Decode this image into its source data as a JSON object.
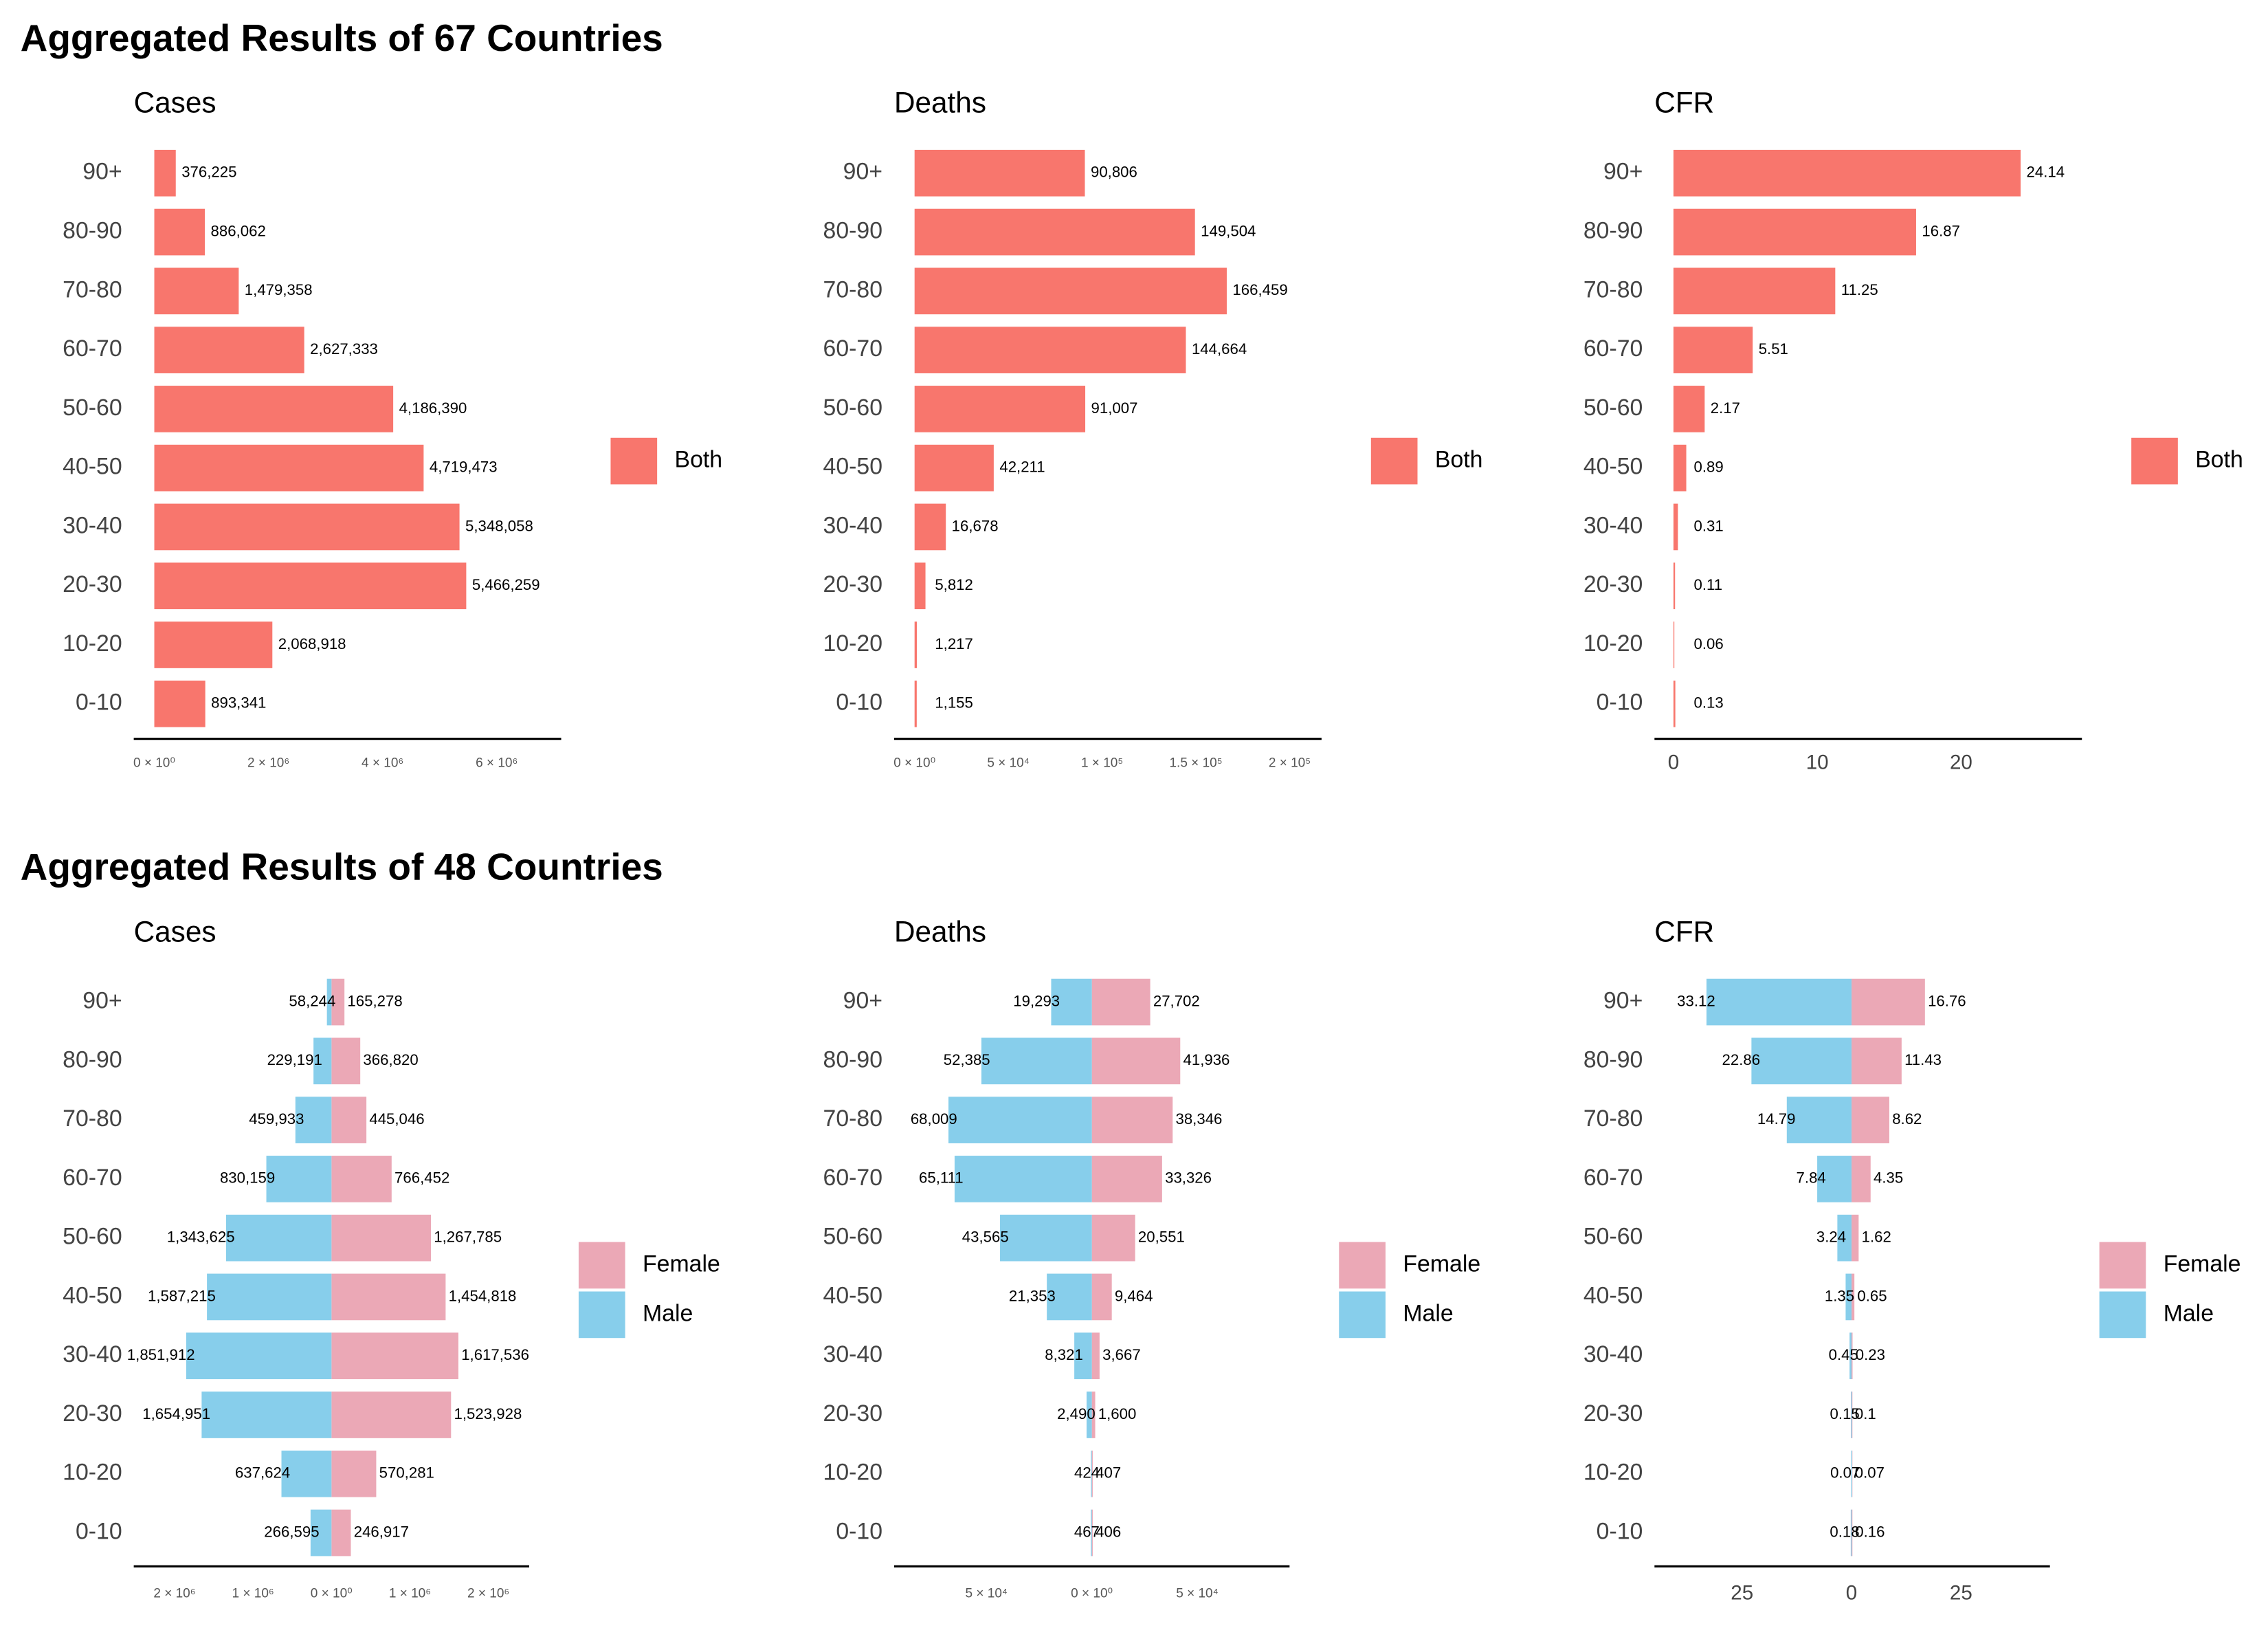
{
  "headings": [
    "Aggregated Results of 67 Countries",
    "Aggregated Results of 48 Countries"
  ],
  "chart_data": [
    {
      "type": "bar",
      "orientation": "horizontal",
      "title": "Cases",
      "categories": [
        "90+",
        "80-90",
        "70-80",
        "60-70",
        "50-60",
        "40-50",
        "30-40",
        "20-30",
        "10-20",
        "0-10"
      ],
      "series": [
        {
          "name": "Both",
          "color": "#F8766D",
          "values": [
            376225,
            886062,
            1479358,
            2627333,
            4186390,
            4719473,
            5348058,
            5466259,
            2068918,
            893341
          ],
          "value_labels": [
            "376,225",
            "886,062",
            "1,479,358",
            "2,627,333",
            "4,186,390",
            "4,719,473",
            "5,348,058",
            "5,466,259",
            "2,068,918",
            "893,341"
          ]
        }
      ],
      "xlim": [
        -360000,
        7130000
      ],
      "xticks": [
        {
          "value": 0,
          "label": "0 × 10⁰"
        },
        {
          "value": 2000000,
          "label": "2 × 10⁶"
        },
        {
          "value": 4000000,
          "label": "4 × 10⁶"
        },
        {
          "value": 6000000,
          "label": "6 × 10⁶"
        }
      ],
      "legend_position": "right"
    },
    {
      "type": "bar",
      "orientation": "horizontal",
      "title": "Deaths",
      "categories": [
        "90+",
        "80-90",
        "70-80",
        "60-70",
        "50-60",
        "40-50",
        "30-40",
        "20-30",
        "10-20",
        "0-10"
      ],
      "series": [
        {
          "name": "Both",
          "color": "#F8766D",
          "values": [
            90806,
            149504,
            166459,
            144664,
            91007,
            42211,
            16678,
            5812,
            1217,
            1155
          ],
          "value_labels": [
            "90,806",
            "149,504",
            "166,459",
            "144,664",
            "91,007",
            "42,211",
            "16,678",
            "5,812",
            "1,217",
            "1,155"
          ]
        }
      ],
      "xlim": [
        -10900,
        217000
      ],
      "xticks": [
        {
          "value": 0,
          "label": "0 × 10⁰"
        },
        {
          "value": 50000,
          "label": "5 × 10⁴"
        },
        {
          "value": 100000,
          "label": "1 × 10⁵"
        },
        {
          "value": 150000,
          "label": "1.5 × 10⁵"
        },
        {
          "value": 200000,
          "label": "2 × 10⁵"
        }
      ],
      "legend_position": "right"
    },
    {
      "type": "bar",
      "orientation": "horizontal",
      "title": "CFR",
      "categories": [
        "90+",
        "80-90",
        "70-80",
        "60-70",
        "50-60",
        "40-50",
        "30-40",
        "20-30",
        "10-20",
        "0-10"
      ],
      "series": [
        {
          "name": "Both",
          "color": "#F8766D",
          "values": [
            24.14,
            16.87,
            11.25,
            5.51,
            2.17,
            0.89,
            0.31,
            0.11,
            0.06,
            0.13
          ]
        }
      ],
      "xlim": [
        -1.32,
        28.4
      ],
      "xticks": [
        0,
        10,
        20
      ],
      "legend_position": "right"
    },
    {
      "type": "diverging-bar",
      "orientation": "horizontal",
      "title": "Cases",
      "categories": [
        "90+",
        "80-90",
        "70-80",
        "60-70",
        "50-60",
        "40-50",
        "30-40",
        "20-30",
        "10-20",
        "0-10"
      ],
      "series": [
        {
          "name": "Female",
          "color": "#EBA8B6",
          "values": [
            165278,
            366820,
            445046,
            766452,
            1267785,
            1454818,
            1617536,
            1523928,
            570281,
            246917
          ],
          "value_labels": [
            "165,278",
            "366,820",
            "445,046",
            "766,452",
            "1,267,785",
            "1,454,818",
            "1,617,536",
            "1,523,928",
            "570,281",
            "246,917"
          ]
        },
        {
          "name": "Male",
          "color": "#87CEEB",
          "values": [
            -58244,
            -229191,
            -459933,
            -830159,
            -1343625,
            -1587215,
            -1851912,
            -1654951,
            -637624,
            -266595
          ],
          "value_labels": [
            "58,244",
            "229,191",
            "459,933",
            "830,159",
            "1,343,625",
            "1,587,215",
            "1,851,912",
            "1,654,951",
            "637,624",
            "266,595"
          ]
        }
      ],
      "xlim": [
        -2520000,
        2520000
      ],
      "xticks": [
        {
          "value": -2000000,
          "label": "2 × 10⁶"
        },
        {
          "value": -1000000,
          "label": "1 × 10⁶"
        },
        {
          "value": 0,
          "label": "0 × 10⁰"
        },
        {
          "value": 1000000,
          "label": "1 × 10⁶"
        },
        {
          "value": 2000000,
          "label": "2 × 10⁶"
        }
      ],
      "legend_position": "right"
    },
    {
      "type": "diverging-bar",
      "orientation": "horizontal",
      "title": "Deaths",
      "categories": [
        "90+",
        "80-90",
        "70-80",
        "60-70",
        "50-60",
        "40-50",
        "30-40",
        "20-30",
        "10-20",
        "0-10"
      ],
      "series": [
        {
          "name": "Female",
          "color": "#EBA8B6",
          "values": [
            27702,
            41936,
            38346,
            33326,
            20551,
            9464,
            3667,
            1600,
            407,
            406
          ],
          "value_labels": [
            "27,702",
            "41,936",
            "38,346",
            "33,326",
            "20,551",
            "9,464",
            "3,667",
            "1,600",
            "407",
            "406"
          ]
        },
        {
          "name": "Male",
          "color": "#87CEEB",
          "values": [
            -19293,
            -52385,
            -68009,
            -65111,
            -43565,
            -21353,
            -8321,
            -2490,
            -424,
            -467
          ],
          "value_labels": [
            "19,293",
            "52,385",
            "68,009",
            "65,111",
            "43,565",
            "21,353",
            "8,321",
            "2,490",
            "424",
            "467"
          ]
        }
      ],
      "xlim": [
        -93800,
        93800
      ],
      "xticks": [
        {
          "value": -50000,
          "label": "5 × 10⁴"
        },
        {
          "value": 0,
          "label": "0 × 10⁰"
        },
        {
          "value": 50000,
          "label": "5 × 10⁴"
        }
      ],
      "legend_position": "right"
    },
    {
      "type": "diverging-bar",
      "orientation": "horizontal",
      "title": "CFR",
      "categories": [
        "90+",
        "80-90",
        "70-80",
        "60-70",
        "50-60",
        "40-50",
        "30-40",
        "20-30",
        "10-20",
        "0-10"
      ],
      "series": [
        {
          "name": "Female",
          "color": "#EBA8B6",
          "values": [
            16.76,
            11.43,
            8.62,
            4.35,
            1.62,
            0.65,
            0.23,
            0.1,
            0.07,
            0.16
          ]
        },
        {
          "name": "Male",
          "color": "#87CEEB",
          "values": [
            -33.12,
            -22.86,
            -14.79,
            -7.84,
            -3.24,
            -1.35,
            -0.45,
            -0.15,
            -0.07,
            -0.18
          ],
          "value_labels": [
            "33.12",
            "22.86",
            "14.79",
            "7.84",
            "3.24",
            "1.35",
            "0.45",
            "0.15",
            "0.07",
            "0.18"
          ]
        }
      ],
      "xlim": [
        -45,
        45.3
      ],
      "xticks": [
        {
          "value": -25,
          "label": "25"
        },
        0,
        25
      ],
      "legend_position": "right"
    }
  ]
}
